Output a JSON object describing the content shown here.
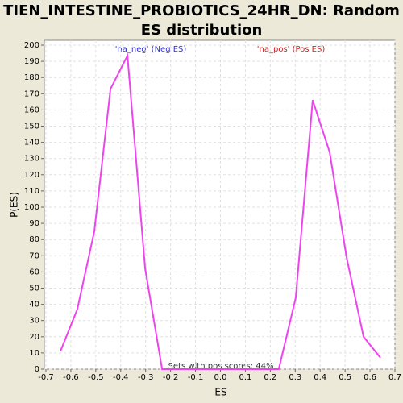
{
  "chart_data": {
    "type": "line",
    "title": "TIEN_INTESTINE_PROBIOTICS_24HR_DN: Random ES distribution",
    "x_label": "ES",
    "y_label": "P(ES)",
    "annotations": [
      "'na_neg' (Neg ES)",
      "'na_pos' (Pos ES)",
      "Sets with pos scores: 44%"
    ],
    "x": [
      -0.642,
      -0.574,
      -0.506,
      -0.441,
      -0.373,
      -0.302,
      -0.234,
      -0.166,
      -0.098,
      -0.03,
      0.038,
      0.106,
      0.174,
      0.234,
      0.302,
      0.37,
      0.438,
      0.506,
      0.574,
      0.642
    ],
    "series": [
      {
        "name": "P(ES)",
        "color": "#ee44ee",
        "values": [
          11,
          37,
          85,
          173,
          193.5,
          62,
          0,
          0,
          0,
          0,
          0,
          0,
          0,
          0,
          44,
          166,
          134,
          69,
          20,
          7
        ]
      }
    ],
    "xlim": [
      -0.7,
      0.7
    ],
    "xticks": [
      -0.7,
      -0.6,
      -0.5,
      -0.4,
      -0.3,
      -0.2,
      -0.1,
      {
        "value": 0,
        "label": "0.0"
      },
      0.1,
      0.2,
      0.3,
      0.4,
      0.5,
      0.6,
      0.7
    ],
    "ylim": [
      0,
      200
    ],
    "yticks": [
      0,
      10,
      20,
      30,
      40,
      50,
      60,
      70,
      80,
      90,
      100,
      110,
      120,
      130,
      140,
      150,
      160,
      170,
      180,
      190,
      200
    ],
    "grid": true
  }
}
